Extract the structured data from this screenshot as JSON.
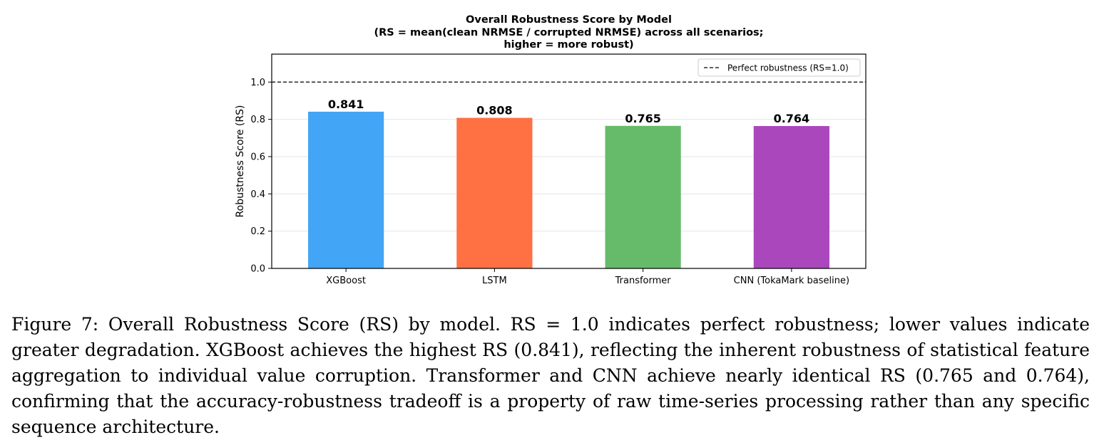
{
  "chart_data": {
    "type": "bar",
    "title_lines": [
      "Overall Robustness Score by Model",
      "(RS = mean(clean NRMSE / corrupted NRMSE) across all scenarios;",
      "higher = more robust)"
    ],
    "categories": [
      "XGBoost",
      "LSTM",
      "Transformer",
      "CNN (TokaMark baseline)"
    ],
    "values": [
      0.841,
      0.808,
      0.765,
      0.764
    ],
    "value_labels": [
      "0.841",
      "0.808",
      "0.765",
      "0.764"
    ],
    "colors": [
      "#42a5f5",
      "#ff7043",
      "#66bb6a",
      "#ab47bc"
    ],
    "xlabel": "",
    "ylabel": "Robustness Score (RS)",
    "ylim": [
      0,
      1.15
    ],
    "yticks": [
      0.0,
      0.2,
      0.4,
      0.6,
      0.8,
      1.0
    ],
    "ytick_labels": [
      "0.0",
      "0.2",
      "0.4",
      "0.6",
      "0.8",
      "1.0"
    ],
    "reference_line": {
      "value": 1.0,
      "style": "dashed",
      "label": "Perfect robustness (RS=1.0)"
    },
    "grid": "y",
    "legend_position": "top-right"
  },
  "caption": "Figure 7: Overall Robustness Score (RS) by model. RS = 1.0 indicates perfect robustness; lower values indicate greater degradation. XGBoost achieves the highest RS (0.841), reflecting the inherent robustness of statistical feature aggregation to individual value corruption. Transformer and CNN achieve nearly identical RS (0.765 and 0.764), confirming that the accuracy-robustness tradeoff is a property of raw time-series processing rather than any specific sequence architecture."
}
